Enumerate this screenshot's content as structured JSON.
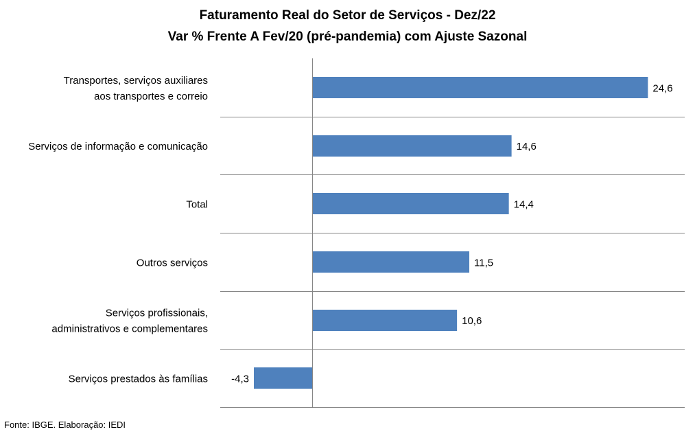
{
  "chart_data": {
    "type": "bar",
    "orientation": "horizontal",
    "title": "Faturamento Real do Setor de Serviços - Dez/22",
    "subtitle": "Var % Frente A Fev/20 (pré-pandemia) com Ajuste Sazonal",
    "categories": [
      [
        "Transportes, serviços auxiliares",
        "aos transportes e correio"
      ],
      [
        "Serviços de informação e comunicação"
      ],
      [
        "Total"
      ],
      [
        "Outros serviços"
      ],
      [
        "Serviços profissionais,",
        "administrativos e complementares"
      ],
      [
        "Serviços prestados às famílias"
      ]
    ],
    "values": [
      24.6,
      14.6,
      14.4,
      11.5,
      10.6,
      -4.3
    ],
    "data_labels": [
      "24,6",
      "14,6",
      "14,4",
      "11,5",
      "10,6",
      "-4,3"
    ],
    "xlim": [
      -4.3,
      27.5
    ],
    "grid": "horizontal separators between categories",
    "bar_color": "#4f81bd",
    "grid_color": "#868686",
    "axis_color": "#868686"
  },
  "source": "Fonte: IBGE. Elaboração: IEDI"
}
